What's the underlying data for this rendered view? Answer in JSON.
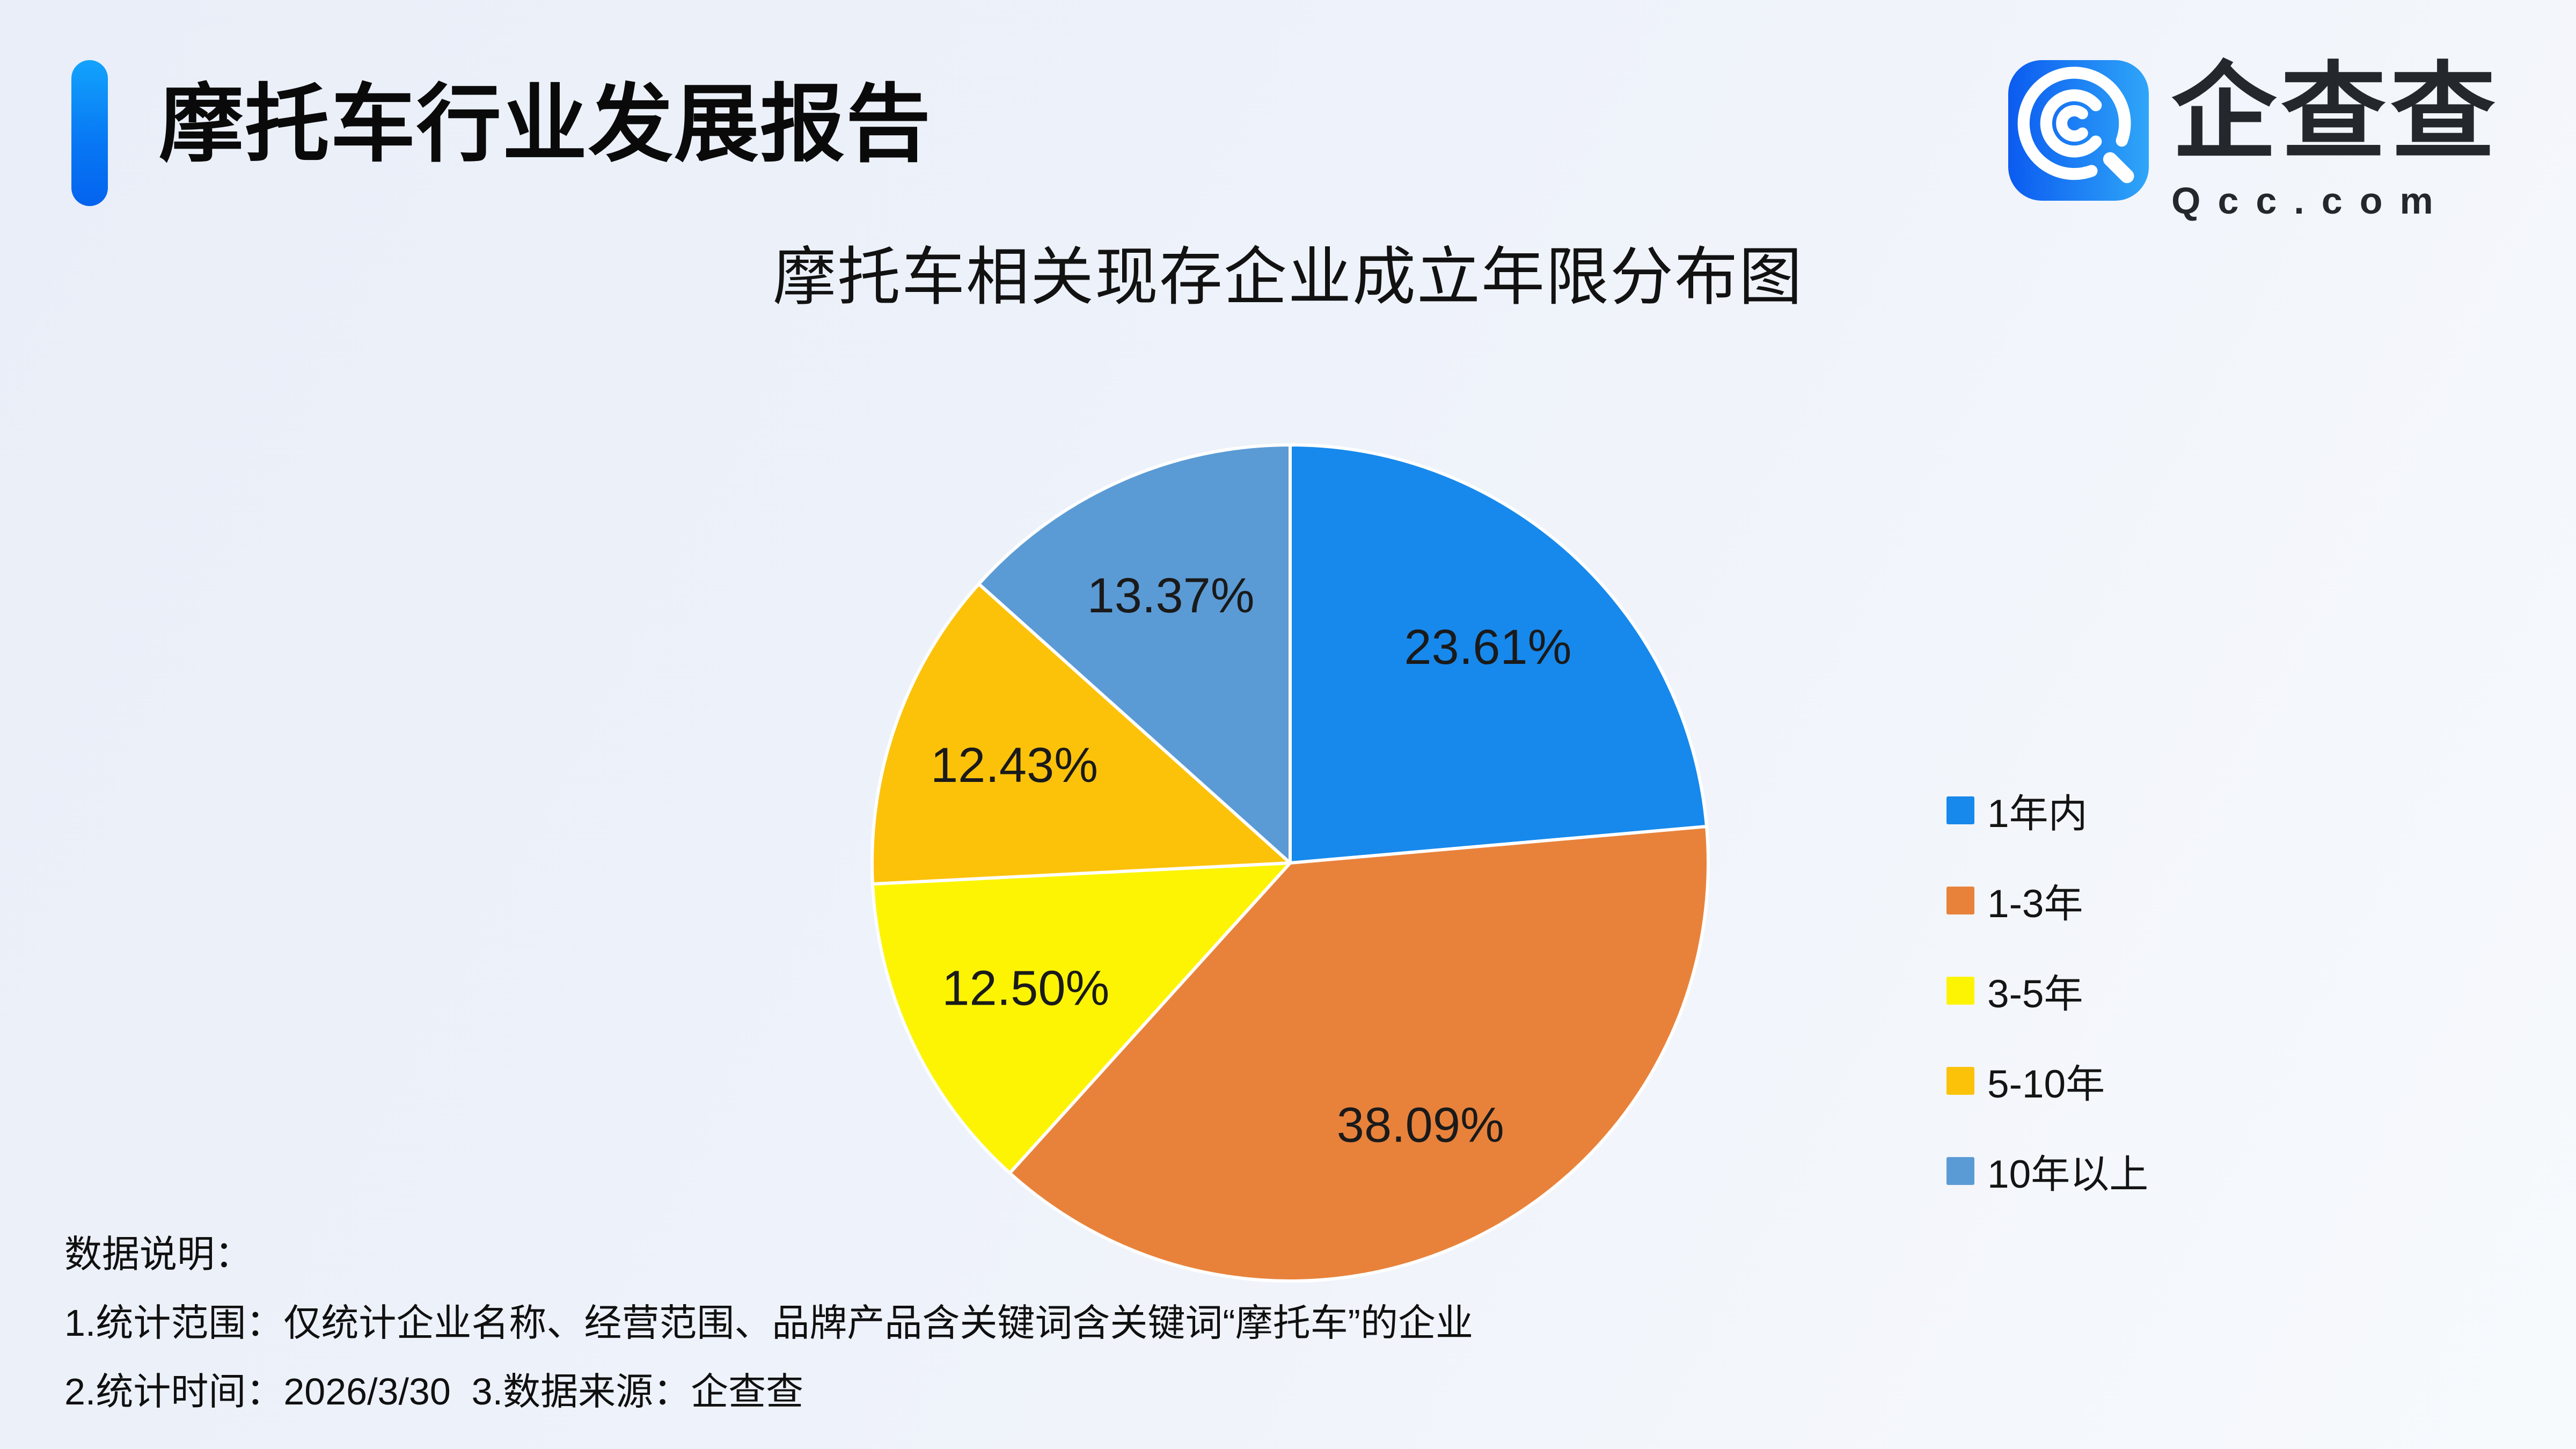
{
  "header": {
    "title": "摩托车行业发展报告",
    "accent_color": "#0B7BF4",
    "logo": {
      "brand": "企查查",
      "domain": "Qcc.com",
      "icon_gradient": [
        "#0B5BF0",
        "#2FA6F8"
      ]
    }
  },
  "chart_data": {
    "type": "pie",
    "title": "摩托车相关现存企业成立年限分布图",
    "legend_position": "right",
    "start_angle_deg": 0,
    "direction": "clockwise",
    "label_color": "#1A1A1A",
    "slice_border_color": "#FFFFFF",
    "series": [
      {
        "name": "1年内",
        "value": 23.61,
        "percent_label": "23.61%",
        "color": "#1789EC"
      },
      {
        "name": "1-3年",
        "value": 38.09,
        "percent_label": "38.09%",
        "color": "#E8823B"
      },
      {
        "name": "3-5年",
        "value": 12.5,
        "percent_label": "12.50%",
        "color": "#FCF403"
      },
      {
        "name": "5-10年",
        "value": 12.43,
        "percent_label": "12.43%",
        "color": "#FCC20A"
      },
      {
        "name": "10年以上",
        "value": 13.37,
        "percent_label": "13.37%",
        "color": "#5B9BD5"
      }
    ]
  },
  "footnotes": {
    "heading": "数据说明：",
    "line1": "1.统计范围：仅统计企业名称、经营范围、品牌产品含关键词含关键词“摩托车”的企业",
    "line2": "2.统计时间：2026/3/30  3.数据来源：企查查"
  }
}
